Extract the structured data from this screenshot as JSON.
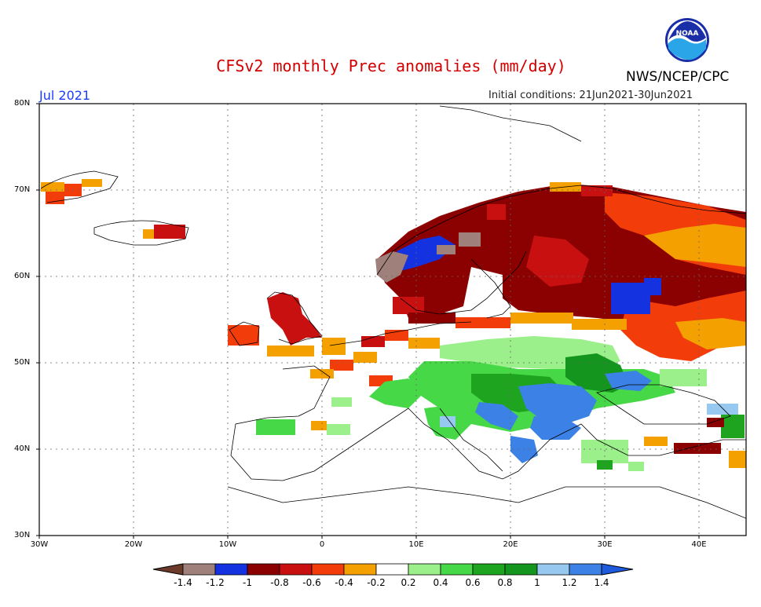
{
  "title": "CFSv2 monthly Prec anomalies (mm/day)",
  "organization": "NWS/NCEP/CPC",
  "logo_text": "NOAA",
  "valid_month": "Jul 2021",
  "initial_conditions": "Initial conditions: 21Jun2021-30Jun2021",
  "axes": {
    "lat_labels": [
      "80N",
      "70N",
      "60N",
      "50N",
      "40N",
      "30N"
    ],
    "lon_labels": [
      "30W",
      "20W",
      "10W",
      "0",
      "10E",
      "20E",
      "30E",
      "40E"
    ],
    "lon_range": [
      -30,
      45
    ],
    "lat_range": [
      30,
      80
    ]
  },
  "colorbar": {
    "labels": [
      "-1.4",
      "-1.2",
      "-1",
      "-0.8",
      "-0.6",
      "-0.4",
      "-0.2",
      "0.2",
      "0.4",
      "0.6",
      "0.8",
      "1",
      "1.2",
      "1.4"
    ],
    "colors": [
      "#6b3a2a",
      "#a0807a",
      "#1432e0",
      "#8b0000",
      "#c81010",
      "#f23c0a",
      "#f4a000",
      "#ffffff",
      "#9cf08c",
      "#46d846",
      "#1ea41e",
      "#14961e",
      "#96c8f0",
      "#3c82e6",
      "#1e5adc"
    ]
  },
  "chart_data": {
    "type": "heatmap",
    "title": "CFSv2 monthly Prec anomalies (mm/day)",
    "units": "mm/day",
    "region": {
      "lon": [
        -30,
        45
      ],
      "lat": [
        30,
        80
      ]
    },
    "anomaly_regions": [
      {
        "lon": [
          -30,
          -25
        ],
        "lat": [
          68,
          70
        ],
        "value": -0.5
      },
      {
        "lon": [
          -17,
          -13
        ],
        "lat": [
          64,
          66
        ],
        "value": -0.7
      },
      {
        "lon": [
          4,
          12
        ],
        "lat": [
          58,
          64
        ],
        "value": -1.2
      },
      {
        "lon": [
          5,
          30
        ],
        "lat": [
          58,
          70
        ],
        "value": -0.9
      },
      {
        "lon": [
          15,
          45
        ],
        "lat": [
          62,
          70
        ],
        "value": -0.6
      },
      {
        "lon": [
          25,
          45
        ],
        "lat": [
          52,
          62
        ],
        "value": -0.7
      },
      {
        "lon": [
          30,
          34
        ],
        "lat": [
          57,
          59
        ],
        "value": -1.1
      },
      {
        "lon": [
          -10,
          2
        ],
        "lat": [
          51,
          58
        ],
        "value": -0.6
      },
      {
        "lon": [
          3,
          16
        ],
        "lat": [
          53,
          56
        ],
        "value": -0.7
      },
      {
        "lon": [
          15,
          32
        ],
        "lat": [
          46,
          52
        ],
        "value": 0.4
      },
      {
        "lon": [
          5,
          25
        ],
        "lat": [
          43,
          48
        ],
        "value": 0.6
      },
      {
        "lon": [
          16,
          27
        ],
        "lat": [
          40,
          46
        ],
        "value": 1.3
      },
      {
        "lon": [
          25,
          40
        ],
        "lat": [
          45,
          49
        ],
        "value": 0.7
      },
      {
        "lon": [
          -7,
          -2
        ],
        "lat": [
          41,
          43
        ],
        "value": 0.4
      },
      {
        "lon": [
          36,
          42
        ],
        "lat": [
          39,
          41
        ],
        "value": -0.8
      },
      {
        "lon": [
          43,
          45
        ],
        "lat": [
          40,
          44
        ],
        "value": 1.2
      }
    ]
  }
}
